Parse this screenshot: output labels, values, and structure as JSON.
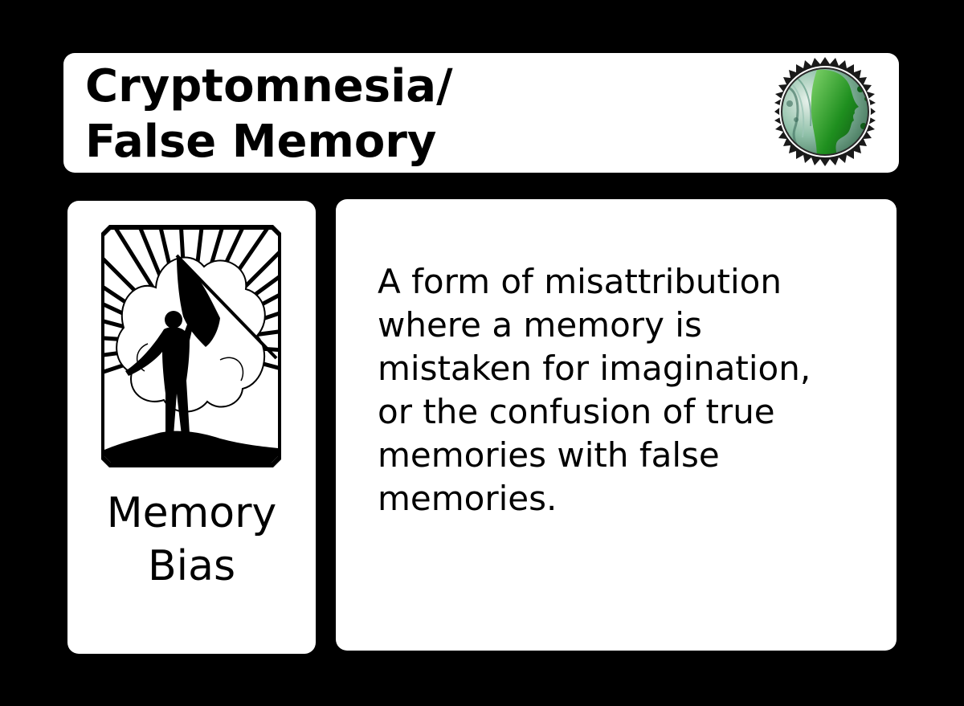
{
  "card": {
    "title_lines": [
      "Cryptomnesia/",
      "False Memory"
    ],
    "category_lines": [
      "Memory",
      "Bias"
    ],
    "description_lines": [
      "A form of misattribution",
      "where a memory is",
      "mistaken for imagination,",
      "or the confusion of true",
      "memories with false",
      "memories."
    ],
    "badge_icon": "green-woman-profile-seal-icon",
    "emblem_icon": "flag-bearer-silhouette-icon"
  },
  "colors": {
    "background": "#000000",
    "card": "#ffffff",
    "text": "#000000",
    "badge_green": "#1f8f1f"
  }
}
